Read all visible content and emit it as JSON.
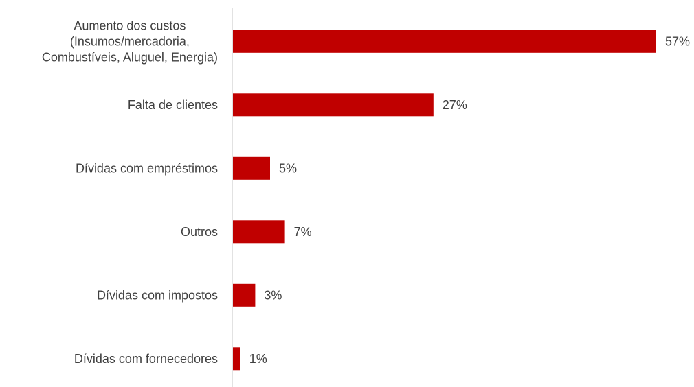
{
  "chart_data": {
    "type": "bar",
    "orientation": "horizontal",
    "categories": [
      [
        "Aumento dos custos",
        "(Insumos/mercadoria,",
        "Combustíveis, Aluguel, Energia)"
      ],
      [
        "Falta de clientes"
      ],
      [
        "Dívidas com empréstimos"
      ],
      [
        "Outros"
      ],
      [
        "Dívidas com impostos"
      ],
      [
        "Dívidas com fornecedores"
      ]
    ],
    "values": [
      57,
      27,
      5,
      7,
      3,
      1
    ],
    "value_labels": [
      "57%",
      "27%",
      "5%",
      "7%",
      "3%",
      "1%"
    ],
    "xlim": [
      0,
      57
    ],
    "grid": false,
    "legend": "none",
    "bar_color": "#C00000",
    "axis_color": "#D9D9D9",
    "text_color": "#404040"
  }
}
